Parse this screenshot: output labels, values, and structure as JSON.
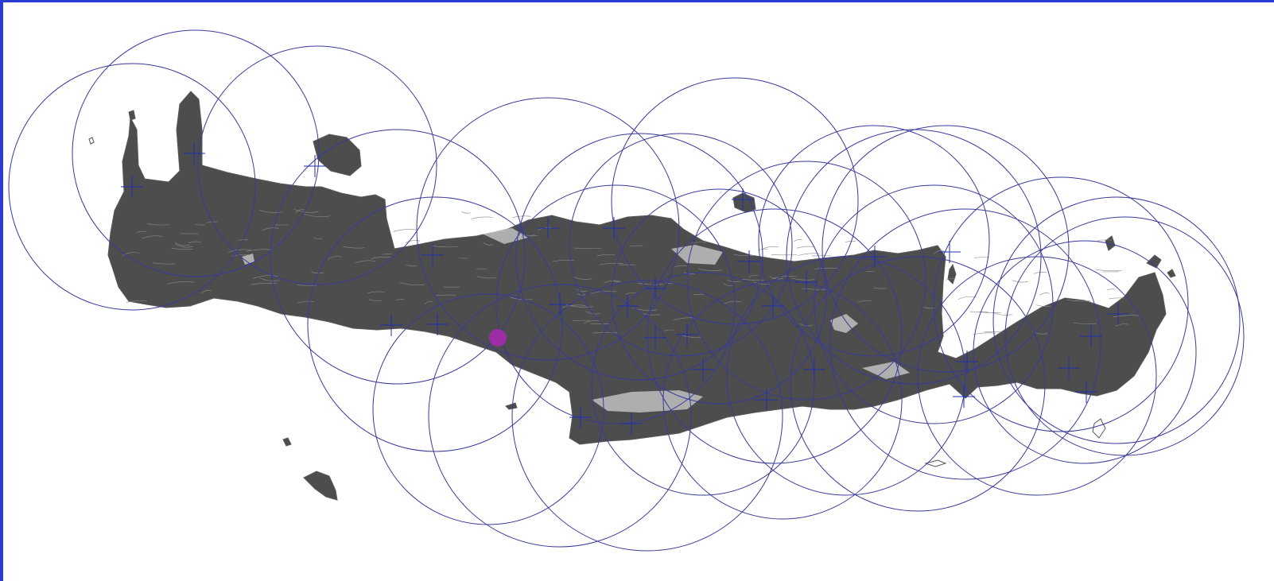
{
  "map": {
    "background_color": "#ffffff",
    "frame_color": "#2b3bd0",
    "landmass_color": "#4d4d4d",
    "contour_color": "#6a6a6a",
    "circle_color": "#3a3a9a",
    "crosshair_color": "#1f2fb0",
    "highlight_color": "#a62ab0",
    "layers": [
      "island-landmass",
      "coverage-circles",
      "station-crosshairs",
      "selected-station"
    ]
  }
}
